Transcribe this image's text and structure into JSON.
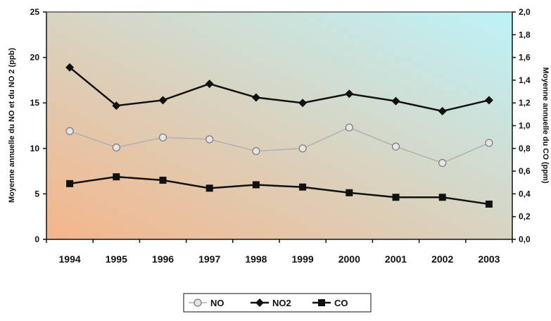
{
  "chart_data": {
    "type": "line",
    "categories": [
      "1994",
      "1995",
      "1996",
      "1997",
      "1998",
      "1999",
      "2000",
      "2001",
      "2002",
      "2003"
    ],
    "series": [
      {
        "name": "NO",
        "axis": "left",
        "color": "#b0b0b0",
        "marker": "circle",
        "values": [
          11.9,
          10.1,
          11.2,
          11.0,
          9.7,
          10.0,
          12.3,
          10.2,
          8.4,
          10.6
        ]
      },
      {
        "name": "NO2",
        "axis": "left",
        "color": "#111111",
        "marker": "diamond",
        "values": [
          18.9,
          14.7,
          15.3,
          17.1,
          15.6,
          15.0,
          16.0,
          15.2,
          14.1,
          15.3
        ]
      },
      {
        "name": "CO",
        "axis": "right",
        "color": "#111111",
        "marker": "square",
        "values": [
          0.49,
          0.55,
          0.52,
          0.45,
          0.48,
          0.46,
          0.41,
          0.37,
          0.37,
          0.31
        ]
      }
    ],
    "ylabel": "Moyenne annuelle du NO et du NO 2 (ppb)",
    "ylabel_right": "Moyenne annuelle du CO (ppm)",
    "ylim": [
      0,
      25
    ],
    "ylim_right": [
      0,
      2.0
    ],
    "yticks": [
      "0",
      "5",
      "10",
      "15",
      "20",
      "25"
    ],
    "yticks_right": [
      "0,0",
      "0,2",
      "0,4",
      "0,6",
      "0,8",
      "1,0",
      "1,2",
      "1,4",
      "1,6",
      "1,8",
      "2,0"
    ],
    "grid": false,
    "legend_position": "bottom-center",
    "background_gradient": [
      "#f4b58a",
      "#bdf2f8"
    ]
  }
}
